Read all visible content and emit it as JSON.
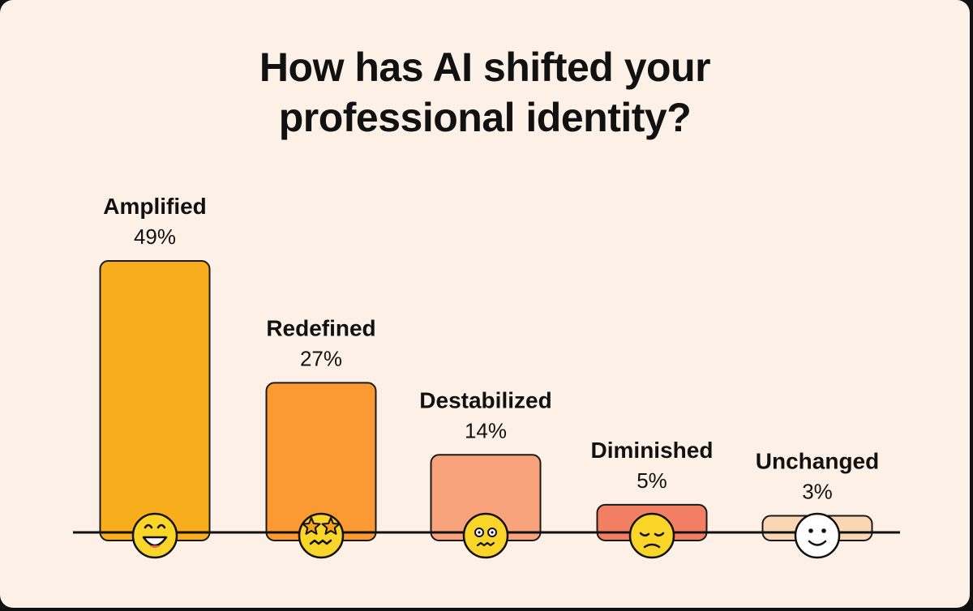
{
  "title_lines": [
    "How has AI shifted your",
    "professional identity?"
  ],
  "chart_data": {
    "type": "bar",
    "title": "How has AI shifted your professional identity?",
    "categories": [
      "Amplified",
      "Redefined",
      "Destabilized",
      "Diminished",
      "Unchanged"
    ],
    "values": [
      49,
      27,
      14,
      5,
      3
    ],
    "value_labels": [
      "49%",
      "27%",
      "14%",
      "5%",
      "3%"
    ],
    "unit": "%",
    "colors": [
      "#f8ad1c",
      "#fb9a32",
      "#f9a37c",
      "#f27f64",
      "#fbd6b4"
    ],
    "icons": [
      "grinning-face-icon",
      "star-struck-face-icon",
      "anxious-face-icon",
      "pensive-face-icon",
      "smiling-face-icon"
    ],
    "ylim": [
      0,
      49
    ],
    "grid": false,
    "legend": "none"
  }
}
